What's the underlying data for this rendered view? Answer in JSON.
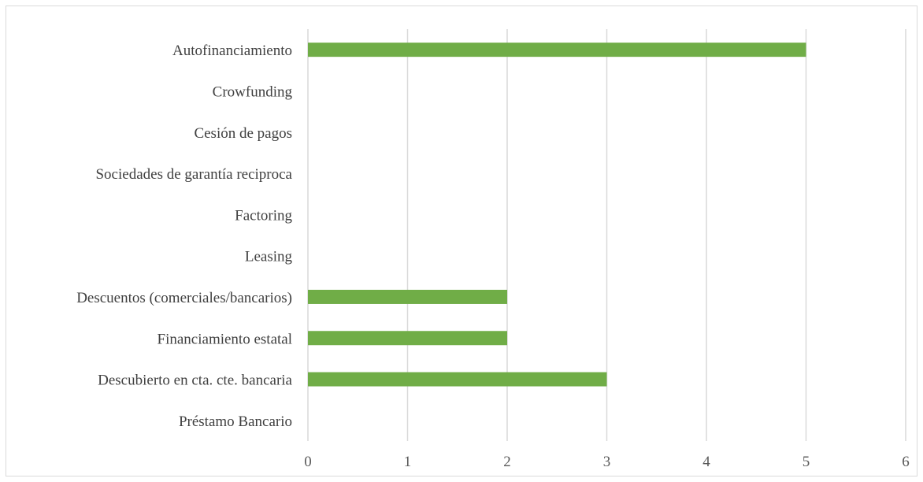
{
  "chart_data": {
    "type": "bar",
    "orientation": "horizontal",
    "categories": [
      "Préstamo Bancario",
      "Descubierto en cta. cte. bancaria",
      "Financiamiento estatal",
      "Descuentos (comerciales/bancarios)",
      "Leasing",
      "Factoring",
      "Sociedades de garantía reciproca",
      "Cesión de pagos",
      "Crowfunding",
      "Autofinanciamiento"
    ],
    "values": [
      0,
      3,
      2,
      2,
      0,
      0,
      0,
      0,
      0,
      5
    ],
    "xlim": [
      0,
      6
    ],
    "xticks": [
      "0",
      "1",
      "2",
      "3",
      "4",
      "5",
      "6"
    ],
    "title": "",
    "xlabel": "",
    "ylabel": "",
    "grid": "vertical",
    "legend": "none",
    "bar_color": "#70ad47"
  }
}
